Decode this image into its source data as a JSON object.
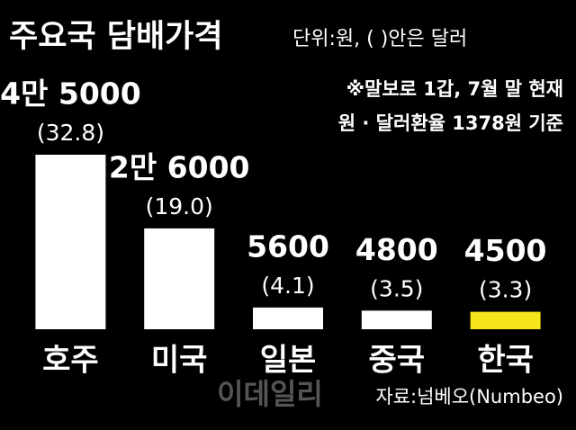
{
  "chart_data": {
    "type": "bar",
    "title": "주요국 담배가격",
    "subtitle": "단위:원, ( )안은 달러",
    "annotations": [
      "※말보로 1갑, 7월 말 현재",
      "원 · 달러환율 1378원 기준"
    ],
    "source": "자료:넘베오(Numbeo)",
    "watermark": "이데일리",
    "categories": [
      "호주",
      "미국",
      "일본",
      "중국",
      "한국"
    ],
    "values": [
      45000,
      26000,
      5600,
      4800,
      4500
    ],
    "value_labels": [
      "4만 5000",
      "2만 6000",
      "5600",
      "4800",
      "4500"
    ],
    "dollar_values": [
      32.8,
      19.0,
      4.1,
      3.5,
      3.3
    ],
    "dollar_value_labels": [
      "(32.8)",
      "(19.0)",
      "(4.1)",
      "(3.5)",
      "(3.3)"
    ],
    "colors": [
      "#ffffff",
      "#ffffff",
      "#ffffff",
      "#ffffff",
      "#f7e51c"
    ]
  }
}
